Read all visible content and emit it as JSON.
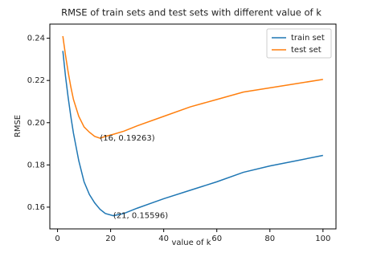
{
  "chart_data": {
    "type": "line",
    "title": "RMSE of train sets and test sets with different value of k",
    "x_label": "value of k",
    "y_label": "RMSE",
    "x": [
      2,
      3,
      4,
      5,
      6,
      8,
      10,
      12,
      14,
      16,
      18,
      21,
      25,
      30,
      40,
      50,
      60,
      70,
      80,
      90,
      100
    ],
    "series": [
      {
        "name": "train set",
        "color": "#1f77b4",
        "values": [
          0.234,
          0.222,
          0.212,
          0.203,
          0.195,
          0.182,
          0.172,
          0.166,
          0.162,
          0.159,
          0.157,
          0.15596,
          0.157,
          0.1595,
          0.164,
          0.168,
          0.172,
          0.1765,
          0.1795,
          0.182,
          0.1845
        ]
      },
      {
        "name": "test set",
        "color": "#ff7f0e",
        "values": [
          0.241,
          0.232,
          0.224,
          0.217,
          0.211,
          0.203,
          0.198,
          0.1955,
          0.1935,
          0.19263,
          0.1935,
          0.1945,
          0.196,
          0.1985,
          0.203,
          0.2075,
          0.211,
          0.2145,
          0.2165,
          0.2185,
          0.2205
        ]
      }
    ],
    "annotations": [
      {
        "text": "(16, 0.19263)",
        "x": 16,
        "y": 0.19263
      },
      {
        "text": "(21, 0.15596)",
        "x": 21,
        "y": 0.15596
      }
    ],
    "xlim": [
      -2.9,
      104.9
    ],
    "xticks": [
      0,
      20,
      40,
      60,
      80,
      100
    ],
    "ylim": [
      0.1497,
      0.2467
    ],
    "yticks": [
      0.16,
      0.18,
      {
        "value": 0.2,
        "label": "0.20"
      },
      0.22,
      0.24
    ],
    "legend": "upper right"
  }
}
